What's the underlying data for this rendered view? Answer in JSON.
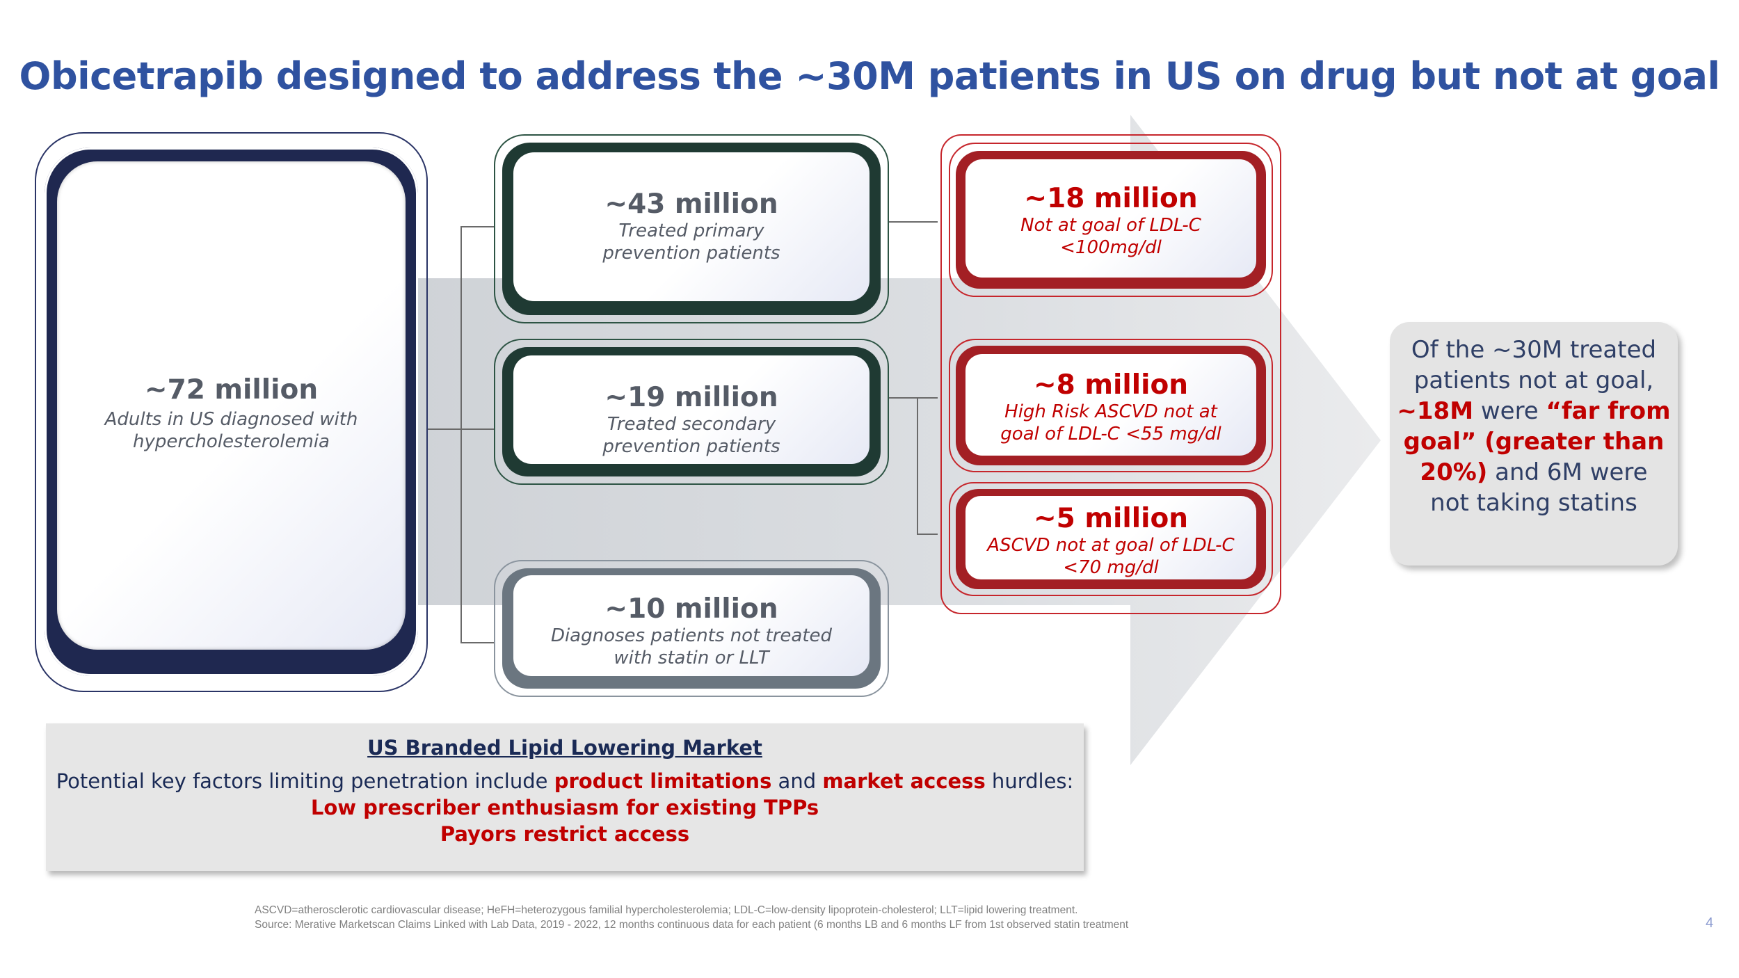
{
  "title": "Obicetrapib designed to address the ~30M patients in US on drug but not at goal",
  "boxes": {
    "adults": {
      "number": "~72 million",
      "line1": "Adults in US diagnosed with",
      "line2": "hypercholesterolemia"
    },
    "primary": {
      "number": "~43 million",
      "line1": "Treated primary",
      "line2": "prevention patients"
    },
    "secondary": {
      "number": "~19 million",
      "line1": "Treated secondary",
      "line2": "prevention patients"
    },
    "untreated": {
      "number": "~10 million",
      "line1": "Diagnoses patients not treated",
      "line2": "with statin or LLT"
    },
    "goal100": {
      "number": "~18 million",
      "line1": "Not at goal of LDL-C",
      "line2": "<100mg/dl"
    },
    "goal55": {
      "number": "~8 million",
      "line1": "High Risk ASCVD not at",
      "line2": "goal of LDL-C <55 mg/dl"
    },
    "goal70": {
      "number": "~5 million",
      "line1": "ASCVD not at goal of LDL-C",
      "line2": "<70 mg/dl"
    }
  },
  "callout": {
    "line1": "Of the ~30M treated",
    "line2": "patients not at goal,",
    "line3_red": "~18M",
    "line3_rest": " were ",
    "line3_red2": "“far from",
    "line4_red": "goal” (greater than",
    "line5_red": "20%)",
    "line5_rest": " and 6M were",
    "line6": "not taking statins"
  },
  "market": {
    "heading": "US Branded Lipid Lowering Market",
    "line1_a": "Potential key factors limiting penetration include ",
    "line1_red1": "product limitations",
    "line1_b": " and ",
    "line1_red2": "market access",
    "line1_c": " hurdles:",
    "line2": "Low prescriber enthusiasm for existing TPPs",
    "line3": "Payors restrict access"
  },
  "footnotes": {
    "line1": "ASCVD=atherosclerotic cardiovascular disease; HeFH=heterozygous familial hypercholesterolemia; LDL-C=low-density lipoprotein-cholesterol; LLT=lipid lowering treatment.",
    "line2": "Source: Merative Marketscan Claims Linked with Lab Data, 2019 - 2022, 12 months continuous data for each patient (6 months LB and 6 months LF from 1st observed statin treatment"
  },
  "page_number": "4",
  "colors": {
    "title_blue": "#2f52a0",
    "navy_frame": "#1f2850",
    "green_frame": "#1f3a33",
    "gray_frame": "#6b7680",
    "red_frame": "#a31f24",
    "highlight_red": "#c00000"
  }
}
